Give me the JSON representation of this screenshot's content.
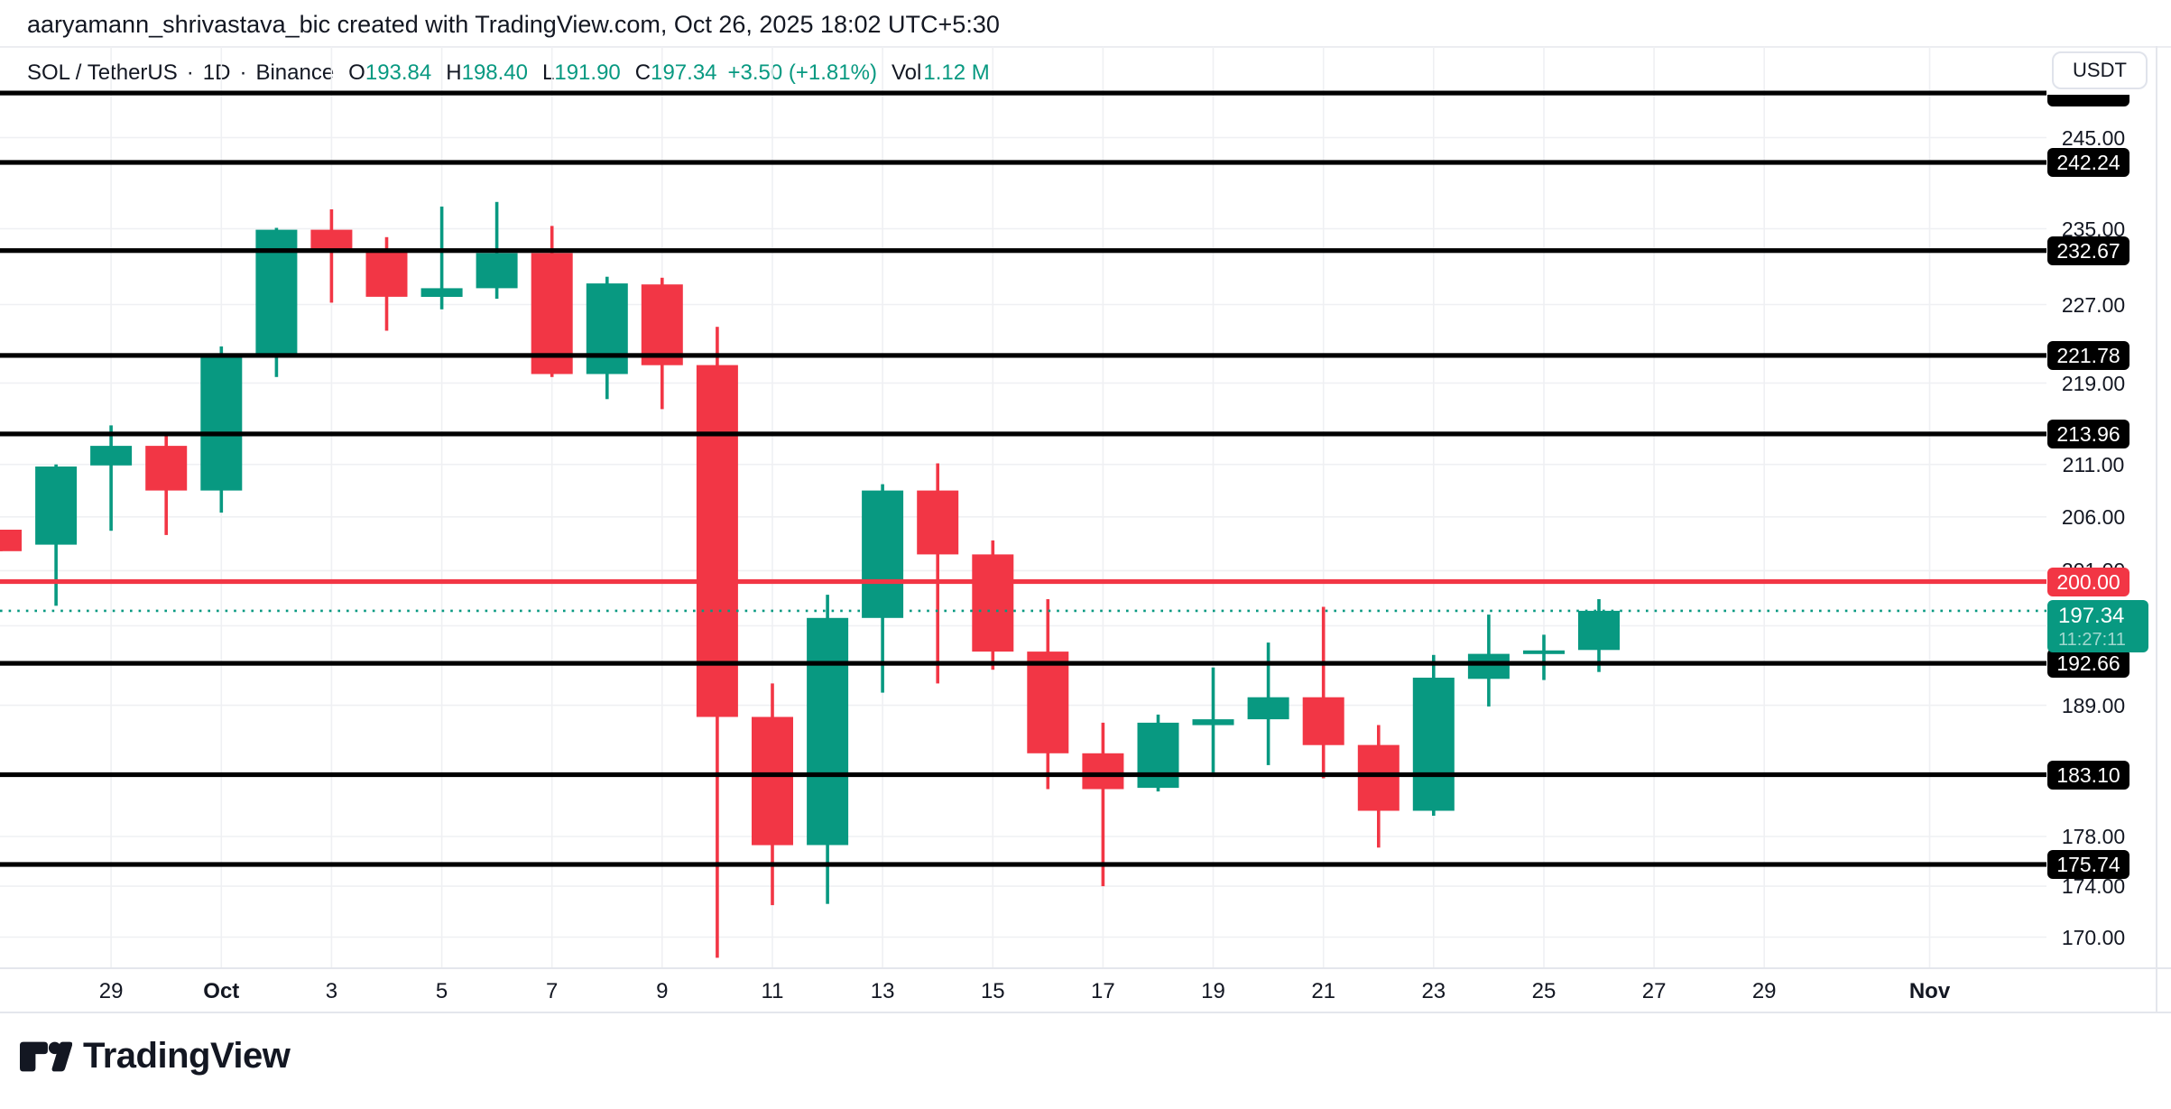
{
  "header": {
    "title": "aaryamann_shrivastava_bic created with TradingView.com, Oct 26, 2025 18:02 UTC+5:30"
  },
  "symbol_row": {
    "pair": "SOL / TetherUS",
    "dot": "·",
    "interval": "1D",
    "exchange": "Binance",
    "ohlc": [
      {
        "k": "O",
        "v": "193.84"
      },
      {
        "k": "H",
        "v": "198.40"
      },
      {
        "k": "L",
        "v": "191.90"
      },
      {
        "k": "C",
        "v": "197.34"
      }
    ],
    "change": "+3.50 (+1.81%)",
    "vol_label": "Vol",
    "vol_value": "1.12 M"
  },
  "axis": {
    "currency_button": "USDT"
  },
  "logo": {
    "text": "TradingView"
  },
  "colors": {
    "up": "#089981",
    "down": "#F23645",
    "line_red": "#F23645",
    "dotted_teal": "#089981",
    "black_line": "#000000",
    "text": "#131722",
    "grid": "#EFF0F3",
    "border": "#E0E3EB",
    "badge_black_bg": "#000000",
    "badge_text": "#FFFFFF"
  },
  "chart_data": {
    "type": "candlestick",
    "pair": "SOL / TetherUS",
    "interval": "1D",
    "exchange": "Binance",
    "scale": "log",
    "ylim_approx": [
      167,
      251
    ],
    "candles": [
      {
        "t": "Sep 27",
        "o": 204.8,
        "h": 204.8,
        "l": 202.8,
        "c": 202.8
      },
      {
        "t": "Sep 28",
        "o": 203.4,
        "h": 211.0,
        "l": 197.8,
        "c": 210.8
      },
      {
        "t": "Sep 29",
        "o": 210.9,
        "h": 214.8,
        "l": 204.7,
        "c": 212.8
      },
      {
        "t": "Sep 30",
        "o": 212.8,
        "h": 213.9,
        "l": 204.3,
        "c": 208.5
      },
      {
        "t": "Oct 1",
        "o": 208.5,
        "h": 222.7,
        "l": 206.4,
        "c": 222.0
      },
      {
        "t": "Oct 2",
        "o": 222.0,
        "h": 235.1,
        "l": 219.6,
        "c": 234.9
      },
      {
        "t": "Oct 3",
        "o": 234.9,
        "h": 237.1,
        "l": 227.2,
        "c": 232.8
      },
      {
        "t": "Oct 4",
        "o": 232.8,
        "h": 234.1,
        "l": 224.3,
        "c": 227.8
      },
      {
        "t": "Oct 5",
        "o": 227.8,
        "h": 237.4,
        "l": 226.5,
        "c": 228.7
      },
      {
        "t": "Oct 6",
        "o": 228.7,
        "h": 237.9,
        "l": 227.6,
        "c": 232.4
      },
      {
        "t": "Oct 7",
        "o": 232.4,
        "h": 235.3,
        "l": 219.6,
        "c": 219.9
      },
      {
        "t": "Oct 8",
        "o": 219.9,
        "h": 229.9,
        "l": 217.4,
        "c": 229.2
      },
      {
        "t": "Oct 9",
        "o": 229.1,
        "h": 229.8,
        "l": 216.4,
        "c": 220.8
      },
      {
        "t": "Oct 10",
        "o": 220.8,
        "h": 224.7,
        "l": 168.4,
        "c": 188.0
      },
      {
        "t": "Oct 11",
        "o": 188.0,
        "h": 190.9,
        "l": 172.5,
        "c": 177.3
      },
      {
        "t": "Oct 12",
        "o": 177.3,
        "h": 198.8,
        "l": 172.6,
        "c": 196.7
      },
      {
        "t": "Oct 13",
        "o": 196.7,
        "h": 209.1,
        "l": 190.1,
        "c": 208.5
      },
      {
        "t": "Oct 14",
        "o": 208.5,
        "h": 211.1,
        "l": 190.9,
        "c": 202.5
      },
      {
        "t": "Oct 15",
        "o": 202.5,
        "h": 203.8,
        "l": 192.1,
        "c": 193.7
      },
      {
        "t": "Oct 16",
        "o": 193.7,
        "h": 198.4,
        "l": 181.9,
        "c": 184.9
      },
      {
        "t": "Oct 17",
        "o": 184.9,
        "h": 187.5,
        "l": 174.0,
        "c": 181.9
      },
      {
        "t": "Oct 18",
        "o": 182.0,
        "h": 188.2,
        "l": 181.7,
        "c": 187.5
      },
      {
        "t": "Oct 19",
        "o": 187.3,
        "h": 192.3,
        "l": 183.3,
        "c": 187.8
      },
      {
        "t": "Oct 20",
        "o": 187.8,
        "h": 194.5,
        "l": 183.9,
        "c": 189.7
      },
      {
        "t": "Oct 21",
        "o": 189.7,
        "h": 197.7,
        "l": 182.8,
        "c": 185.6
      },
      {
        "t": "Oct 22",
        "o": 185.6,
        "h": 187.3,
        "l": 177.1,
        "c": 180.1
      },
      {
        "t": "Oct 23",
        "o": 180.1,
        "h": 193.4,
        "l": 179.7,
        "c": 191.4
      },
      {
        "t": "Oct 24",
        "o": 191.3,
        "h": 197.0,
        "l": 188.9,
        "c": 193.5
      },
      {
        "t": "Oct 25",
        "o": 193.5,
        "h": 195.2,
        "l": 191.2,
        "c": 193.8
      },
      {
        "t": "Oct 26",
        "o": 193.84,
        "h": 198.4,
        "l": 191.9,
        "c": 197.34
      }
    ],
    "horizontal_levels": [
      {
        "price": 250.04,
        "label": "",
        "style": "black",
        "clipped": true
      },
      {
        "price": 242.24,
        "label": "242.24",
        "style": "black"
      },
      {
        "price": 232.67,
        "label": "232.67",
        "style": "black"
      },
      {
        "price": 221.78,
        "label": "221.78",
        "style": "black"
      },
      {
        "price": 213.96,
        "label": "213.96",
        "style": "black"
      },
      {
        "price": 200.0,
        "label": "200.00",
        "style": "red"
      },
      {
        "price": 192.66,
        "label": "192.66",
        "style": "black"
      },
      {
        "price": 183.1,
        "label": "183.10",
        "style": "black"
      },
      {
        "price": 175.74,
        "label": "175.74",
        "style": "black"
      }
    ],
    "current_price": {
      "price": 197.34,
      "label": "197.34",
      "countdown": "11:27:11"
    },
    "y_gridlines": [
      {
        "price": 245.0,
        "label": "245.00"
      },
      {
        "price": 235.0,
        "label": "235.00"
      },
      {
        "price": 227.0,
        "label": "227.00"
      },
      {
        "price": 219.0,
        "label": "219.00"
      },
      {
        "price": 211.0,
        "label": "211.00"
      },
      {
        "price": 206.0,
        "label": "206.00"
      },
      {
        "price": 201.0,
        "label": "201.00"
      },
      {
        "price": 196.0,
        "label": ""
      },
      {
        "price": 189.0,
        "label": "189.00"
      },
      {
        "price": 178.0,
        "label": "178.00"
      },
      {
        "price": 174.0,
        "label": "174.00"
      },
      {
        "price": 170.0,
        "label": "170.00"
      }
    ],
    "x_ticks": [
      {
        "label": "29",
        "i": 2
      },
      {
        "label": "Oct",
        "i": 4,
        "bold": true
      },
      {
        "label": "3",
        "i": 6
      },
      {
        "label": "5",
        "i": 8
      },
      {
        "label": "7",
        "i": 10
      },
      {
        "label": "9",
        "i": 12
      },
      {
        "label": "11",
        "i": 14
      },
      {
        "label": "13",
        "i": 16
      },
      {
        "label": "15",
        "i": 18
      },
      {
        "label": "17",
        "i": 20
      },
      {
        "label": "19",
        "i": 22
      },
      {
        "label": "21",
        "i": 24
      },
      {
        "label": "23",
        "i": 26
      },
      {
        "label": "25",
        "i": 28
      },
      {
        "label": "27",
        "i": 30
      },
      {
        "label": "29",
        "i": 32
      },
      {
        "label": "Nov",
        "i": 35,
        "bold": true
      }
    ]
  }
}
